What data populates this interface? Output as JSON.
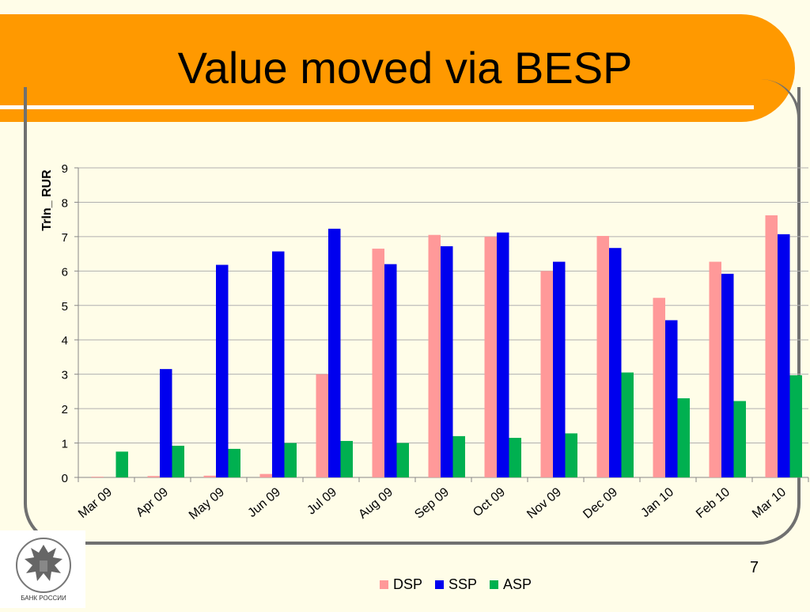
{
  "title": "Value moved via BESP",
  "page_number": "7",
  "logo_text": "БАНК РОССИИ",
  "chart_data": {
    "type": "bar",
    "title": "",
    "ylabel": "Trln_ RUR",
    "xlabel": "",
    "ylim": [
      0,
      9
    ],
    "yticks": [
      0,
      1,
      2,
      3,
      4,
      5,
      6,
      7,
      8,
      9
    ],
    "grid": true,
    "legend_position": "bottom",
    "categories": [
      "Mar 09",
      "Apr 09",
      "May 09",
      "Jun 09",
      "Jul 09",
      "Aug 09",
      "Sep 09",
      "Oct 09",
      "Nov 09",
      "Dec 09",
      "Jan 10",
      "Feb 10",
      "Mar 10"
    ],
    "series": [
      {
        "name": "DSP",
        "color": "#ff9999",
        "values": [
          0.02,
          0.04,
          0.05,
          0.1,
          3.0,
          6.65,
          7.05,
          7.0,
          6.0,
          7.02,
          5.22,
          6.27,
          7.62
        ]
      },
      {
        "name": "SSP",
        "color": "#0000ee",
        "values": [
          0,
          3.15,
          6.18,
          6.57,
          7.23,
          6.2,
          6.72,
          7.12,
          6.27,
          6.67,
          4.57,
          5.92,
          7.07
        ]
      },
      {
        "name": "ASP",
        "color": "#00b050",
        "values": [
          0.75,
          0.92,
          0.83,
          1.0,
          1.06,
          1.0,
          1.2,
          1.15,
          1.28,
          3.05,
          2.3,
          2.22,
          2.97
        ]
      }
    ]
  }
}
